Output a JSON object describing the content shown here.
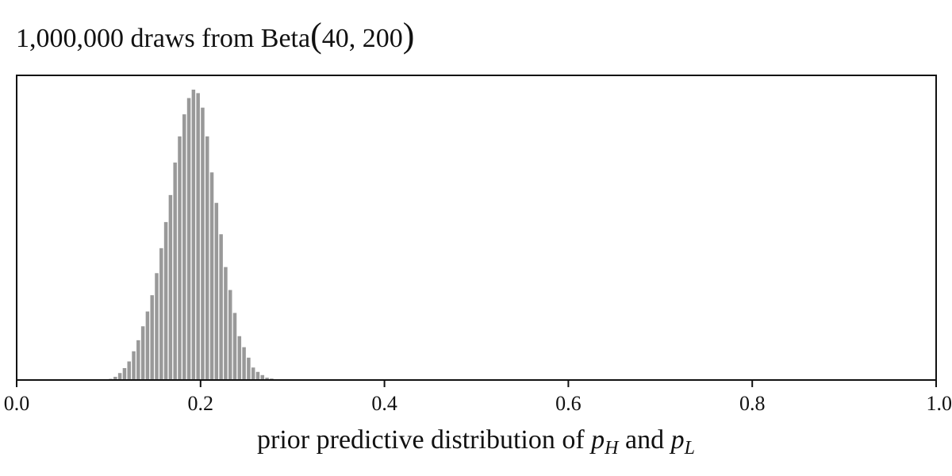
{
  "chart_data": {
    "type": "bar",
    "title": {
      "prefix": "1,000,000 draws from Beta",
      "paren_open": "(",
      "args": "40, 200",
      "paren_close": ")"
    },
    "xlabel": {
      "prefix": "prior predictive distribution of ",
      "var1": "p",
      "sub1": "H",
      "middle": " and ",
      "var2": "p",
      "sub2": "L"
    },
    "ylabel": "",
    "xlim": [
      0.0,
      1.0
    ],
    "xticks": [
      "0.0",
      "0.2",
      "0.4",
      "0.6",
      "0.8",
      "1.0"
    ],
    "xtick_values": [
      0.0,
      0.2,
      0.4,
      0.6,
      0.8,
      1.0
    ],
    "yticks_shown": false,
    "grid": false,
    "bar_color": "#999999",
    "frame_color": "#111111",
    "bin_width": 0.005,
    "bins": [
      {
        "x": 0.1,
        "y": 0.004
      },
      {
        "x": 0.105,
        "y": 0.011
      },
      {
        "x": 0.11,
        "y": 0.024
      },
      {
        "x": 0.115,
        "y": 0.041
      },
      {
        "x": 0.12,
        "y": 0.064
      },
      {
        "x": 0.125,
        "y": 0.099
      },
      {
        "x": 0.13,
        "y": 0.137
      },
      {
        "x": 0.135,
        "y": 0.185
      },
      {
        "x": 0.14,
        "y": 0.236
      },
      {
        "x": 0.145,
        "y": 0.292
      },
      {
        "x": 0.15,
        "y": 0.368
      },
      {
        "x": 0.155,
        "y": 0.454
      },
      {
        "x": 0.16,
        "y": 0.544
      },
      {
        "x": 0.165,
        "y": 0.637
      },
      {
        "x": 0.17,
        "y": 0.749
      },
      {
        "x": 0.175,
        "y": 0.839
      },
      {
        "x": 0.18,
        "y": 0.915
      },
      {
        "x": 0.185,
        "y": 0.971
      },
      {
        "x": 0.19,
        "y": 1.0
      },
      {
        "x": 0.195,
        "y": 0.988
      },
      {
        "x": 0.2,
        "y": 0.938
      },
      {
        "x": 0.205,
        "y": 0.839
      },
      {
        "x": 0.21,
        "y": 0.715
      },
      {
        "x": 0.215,
        "y": 0.61
      },
      {
        "x": 0.22,
        "y": 0.502
      },
      {
        "x": 0.225,
        "y": 0.389
      },
      {
        "x": 0.23,
        "y": 0.31
      },
      {
        "x": 0.235,
        "y": 0.231
      },
      {
        "x": 0.24,
        "y": 0.151
      },
      {
        "x": 0.245,
        "y": 0.113
      },
      {
        "x": 0.25,
        "y": 0.077
      },
      {
        "x": 0.255,
        "y": 0.043
      },
      {
        "x": 0.26,
        "y": 0.028
      },
      {
        "x": 0.265,
        "y": 0.017
      },
      {
        "x": 0.27,
        "y": 0.008
      },
      {
        "x": 0.275,
        "y": 0.005
      },
      {
        "x": 0.28,
        "y": 0.002
      }
    ]
  }
}
